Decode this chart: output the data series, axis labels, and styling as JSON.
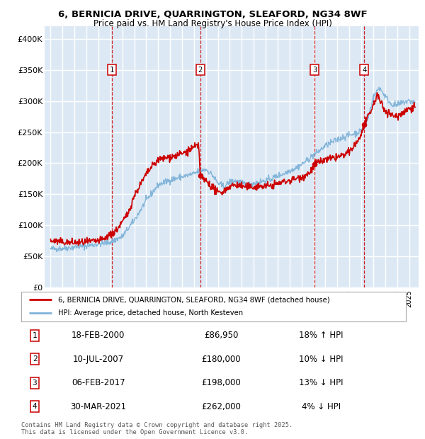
{
  "title_line1": "6, BERNICIA DRIVE, QUARRINGTON, SLEAFORD, NG34 8WF",
  "title_line2": "Price paid vs. HM Land Registry's House Price Index (HPI)",
  "background_color": "#dce9f5",
  "plot_bg_color": "#dce9f5",
  "yticks": [
    0,
    50000,
    100000,
    150000,
    200000,
    250000,
    300000,
    350000,
    400000
  ],
  "ytick_labels": [
    "£0",
    "£50K",
    "£100K",
    "£150K",
    "£200K",
    "£250K",
    "£300K",
    "£350K",
    "£400K"
  ],
  "sale_dates": [
    2000.12,
    2007.53,
    2017.09,
    2021.24
  ],
  "sale_prices": [
    86950,
    180000,
    198000,
    262000
  ],
  "sale_labels": [
    "1",
    "2",
    "3",
    "4"
  ],
  "vline_color": "#cc0000",
  "sale_dot_color": "#cc0000",
  "property_line_color": "#cc0000",
  "hpi_line_color": "#7fb3d8",
  "legend_property": "6, BERNICIA DRIVE, QUARRINGTON, SLEAFORD, NG34 8WF (detached house)",
  "legend_hpi": "HPI: Average price, detached house, North Kesteven",
  "table_data": [
    [
      "1",
      "18-FEB-2000",
      "£86,950",
      "18% ↑ HPI"
    ],
    [
      "2",
      "10-JUL-2007",
      "£180,000",
      "10% ↓ HPI"
    ],
    [
      "3",
      "06-FEB-2017",
      "£198,000",
      "13% ↓ HPI"
    ],
    [
      "4",
      "30-MAR-2021",
      "£262,000",
      "4% ↓ HPI"
    ]
  ],
  "footer": "Contains HM Land Registry data © Crown copyright and database right 2025.\nThis data is licensed under the Open Government Licence v3.0.",
  "xmin": 1994.5,
  "xmax": 2025.8,
  "ymin": 0,
  "ymax": 420000
}
